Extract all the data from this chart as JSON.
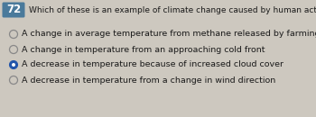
{
  "question_number": "72",
  "question_text": "Which of these is an example of climate change caused by human activity?",
  "options": [
    "A change in average temperature from methane released by farming",
    "A change in temperature from an approaching cold front",
    "A decrease in temperature because of increased cloud cover",
    "A decrease in temperature from a change in wind direction"
  ],
  "selected_index": 2,
  "background_color": "#cdc8bf",
  "number_box_color": "#4a7a9b",
  "number_text_color": "#ffffff",
  "option_text_color": "#1a1a1a",
  "question_text_color": "#1a1a1a",
  "radio_unselected_edge": "#888888",
  "radio_selected_color": "#2255aa",
  "font_size_question": 6.5,
  "font_size_options": 6.8,
  "font_size_number": 8.5
}
